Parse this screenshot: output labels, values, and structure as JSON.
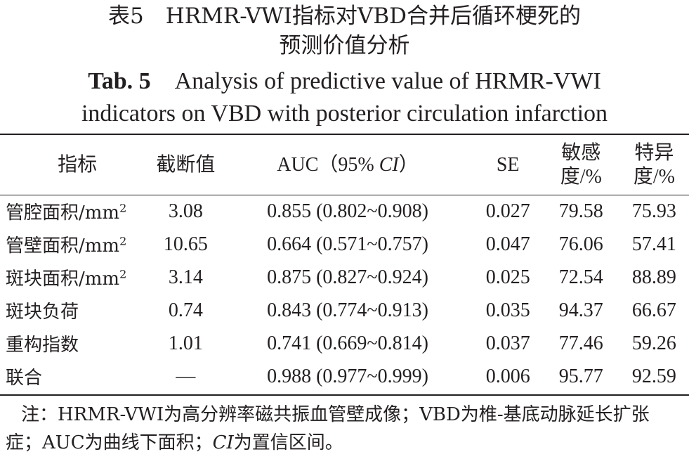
{
  "title": {
    "cn_line1": "表5　HRMR-VWI指标对VBD合并后循环梗死的",
    "cn_line2": "预测价值分析",
    "en_label": "Tab. 5",
    "en_line1_rest": "Analysis of predictive value of HRMR-VWI",
    "en_line2": "indicators on VBD with posterior circulation infarction"
  },
  "table": {
    "headers": {
      "indicator": "指标",
      "cutoff": "截断值",
      "auc_prefix": "AUC（95% ",
      "auc_ci": "CI",
      "auc_suffix": "）",
      "se": "SE",
      "sens_1": "敏感",
      "sens_2": "度/%",
      "spec_1": "特异",
      "spec_2": "度/%"
    },
    "rows": [
      {
        "name": "管腔面积/mm",
        "sup": "2",
        "cutoff": "3.08",
        "auc": "0.855 (0.802~0.908)",
        "se": "0.027",
        "sens": "79.58",
        "spec": "75.93"
      },
      {
        "name": "管壁面积/mm",
        "sup": "2",
        "cutoff": "10.65",
        "auc": "0.664 (0.571~0.757)",
        "se": "0.047",
        "sens": "76.06",
        "spec": "57.41"
      },
      {
        "name": "斑块面积/mm",
        "sup": "2",
        "cutoff": "3.14",
        "auc": "0.875 (0.827~0.924)",
        "se": "0.025",
        "sens": "72.54",
        "spec": "88.89"
      },
      {
        "name": "斑块负荷",
        "sup": "",
        "cutoff": "0.74",
        "auc": "0.843 (0.774~0.913)",
        "se": "0.035",
        "sens": "94.37",
        "spec": "66.67"
      },
      {
        "name": "重构指数",
        "sup": "",
        "cutoff": "1.01",
        "auc": "0.741 (0.669~0.814)",
        "se": "0.037",
        "sens": "77.46",
        "spec": "59.26"
      },
      {
        "name": "联合",
        "sup": "",
        "cutoff": "—",
        "auc": "0.988 (0.977~0.999)",
        "se": "0.006",
        "sens": "95.77",
        "spec": "92.59"
      }
    ]
  },
  "note": {
    "part1": "注：HRMR-VWI为高分辨率磁共振血管壁成像；VBD为椎-基底动脉延长扩张症；AUC为曲线下面积；",
    "ci": "CI",
    "part2": "为置信区间。"
  }
}
